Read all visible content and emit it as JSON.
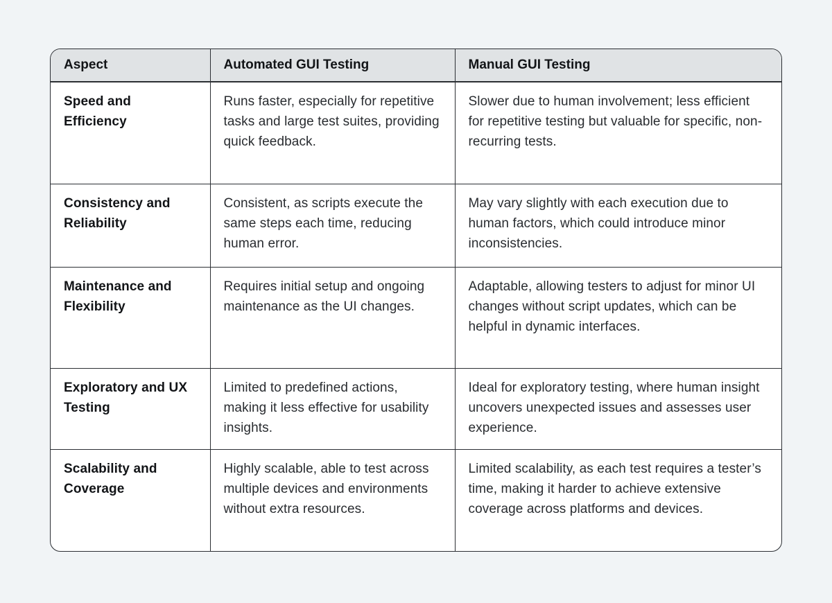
{
  "page": {
    "background_color": "#f1f4f6",
    "card_background": "#ffffff",
    "header_background": "#e0e3e5",
    "border_color": "#2b2e33",
    "heading_text_color": "#121417",
    "body_text_color": "#292c30"
  },
  "table": {
    "columns": [
      "Aspect",
      "Automated GUI Testing",
      "Manual GUI Testing"
    ],
    "rows": [
      {
        "aspect": "Speed and Efficiency",
        "automated": "Runs faster, especially for repetitive tasks and large test suites, providing quick feedback.",
        "manual": "Slower due to human involvement; less efficient for repetitive testing but valuable for specific, non-recurring tests."
      },
      {
        "aspect": "Consistency and Reliability",
        "automated": "Consistent, as scripts execute the same steps each time, reducing human error.",
        "manual": "May vary slightly with each execution due to human factors, which could introduce minor inconsistencies."
      },
      {
        "aspect": "Maintenance and Flexibility",
        "automated": "Requires initial setup and ongoing maintenance as the UI changes.",
        "manual": "Adaptable, allowing testers to adjust for minor UI changes without script updates, which can be helpful in dynamic interfaces."
      },
      {
        "aspect": "Exploratory and UX Testing",
        "automated": "Limited to predefined actions, making it less effective for usability insights.",
        "manual": "Ideal for exploratory testing, where human insight uncovers unexpected issues and assesses user experience."
      },
      {
        "aspect": "Scalability and Coverage",
        "automated": "Highly scalable, able to test across multiple devices and environments without extra resources.",
        "manual": "Limited scalability, as each test requires a tester’s time, making it harder to achieve extensive coverage across platforms and devices."
      }
    ]
  }
}
